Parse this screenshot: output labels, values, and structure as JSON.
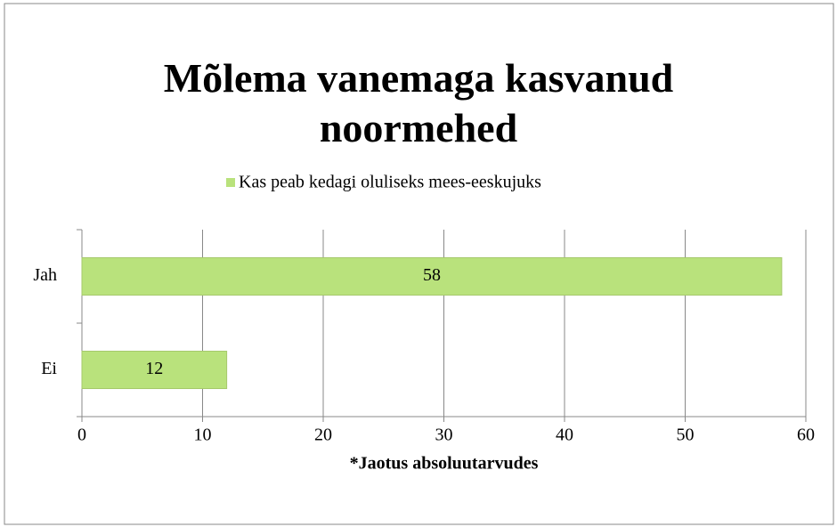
{
  "chart_data": {
    "type": "bar",
    "orientation": "horizontal",
    "title": "Mõlema vanemaga kasvanud noormehed",
    "x_label": "*Jaotus absoluutarvudes",
    "categories": [
      "Jah",
      "Ei"
    ],
    "series": [
      {
        "name": "Kas peab kedagi oluliseks mees-eeskujuks",
        "color": "#b9e27c",
        "values": [
          58,
          12
        ]
      }
    ],
    "xlim": [
      0,
      60
    ],
    "xticks": [
      0,
      10,
      20,
      30,
      40,
      50,
      60
    ],
    "grid": true,
    "legend": "top"
  }
}
